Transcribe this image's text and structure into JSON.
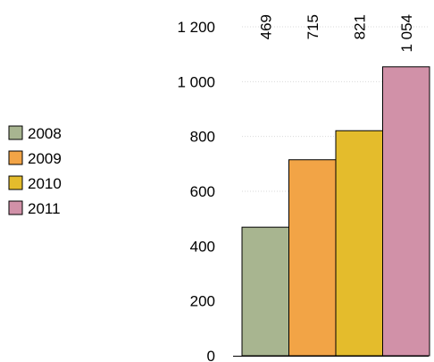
{
  "chart_data": {
    "type": "bar",
    "title": "",
    "xlabel": "",
    "ylabel": "",
    "categories": [
      "2008",
      "2009",
      "2010",
      "2011"
    ],
    "values": [
      469,
      715,
      821,
      1054
    ],
    "data_labels": [
      "469",
      "715",
      "821",
      "1 054"
    ],
    "ylim": [
      0,
      1200
    ],
    "yticks": [
      0,
      200,
      400,
      600,
      800,
      1000,
      1200
    ],
    "ytick_labels": [
      "0",
      "200",
      "400",
      "600",
      "800",
      "1 000",
      "1 200"
    ],
    "colors": [
      "#a8b590",
      "#f2a446",
      "#e4bc2c",
      "#d191a8"
    ],
    "legend": {
      "position": "left",
      "entries": [
        "2008",
        "2009",
        "2010",
        "2011"
      ]
    },
    "grid": true
  }
}
